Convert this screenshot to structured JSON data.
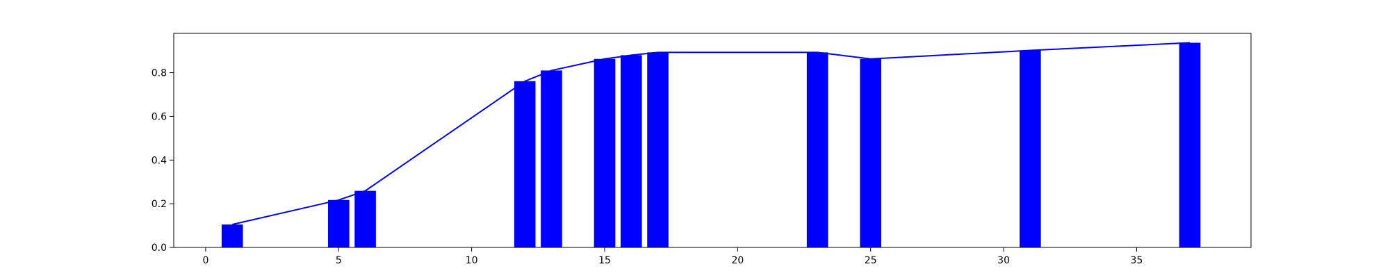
{
  "chart_data": {
    "type": "bar",
    "title": "",
    "xlabel": "",
    "ylabel": "",
    "xlim": [
      -1.2,
      39.3
    ],
    "ylim": [
      0,
      0.98
    ],
    "xticks": [
      0,
      5,
      10,
      15,
      20,
      25,
      30,
      35
    ],
    "xtick_labels": [
      "0",
      "5",
      "10",
      "15",
      "20",
      "25",
      "30",
      "35"
    ],
    "yticks": [
      0.0,
      0.2,
      0.4,
      0.6,
      0.8
    ],
    "ytick_labels": [
      "0.0",
      "0.2",
      "0.4",
      "0.6",
      "0.8"
    ],
    "grid": false,
    "legend": "none",
    "bar_width": 0.8,
    "bar_color": "#0000ff",
    "line_color": "#0000ff",
    "bars": {
      "x": [
        1,
        5,
        6,
        12,
        13,
        15,
        16,
        17,
        23,
        25,
        31,
        37
      ],
      "values": [
        0.105,
        0.217,
        0.259,
        0.761,
        0.81,
        0.863,
        0.88,
        0.893,
        0.893,
        0.863,
        0.902,
        0.937
      ]
    },
    "line": {
      "x": [
        1,
        5,
        6,
        12,
        13,
        15,
        16,
        17,
        23,
        25,
        31,
        37
      ],
      "values": [
        0.105,
        0.217,
        0.259,
        0.761,
        0.81,
        0.863,
        0.88,
        0.893,
        0.893,
        0.863,
        0.902,
        0.937
      ]
    }
  }
}
